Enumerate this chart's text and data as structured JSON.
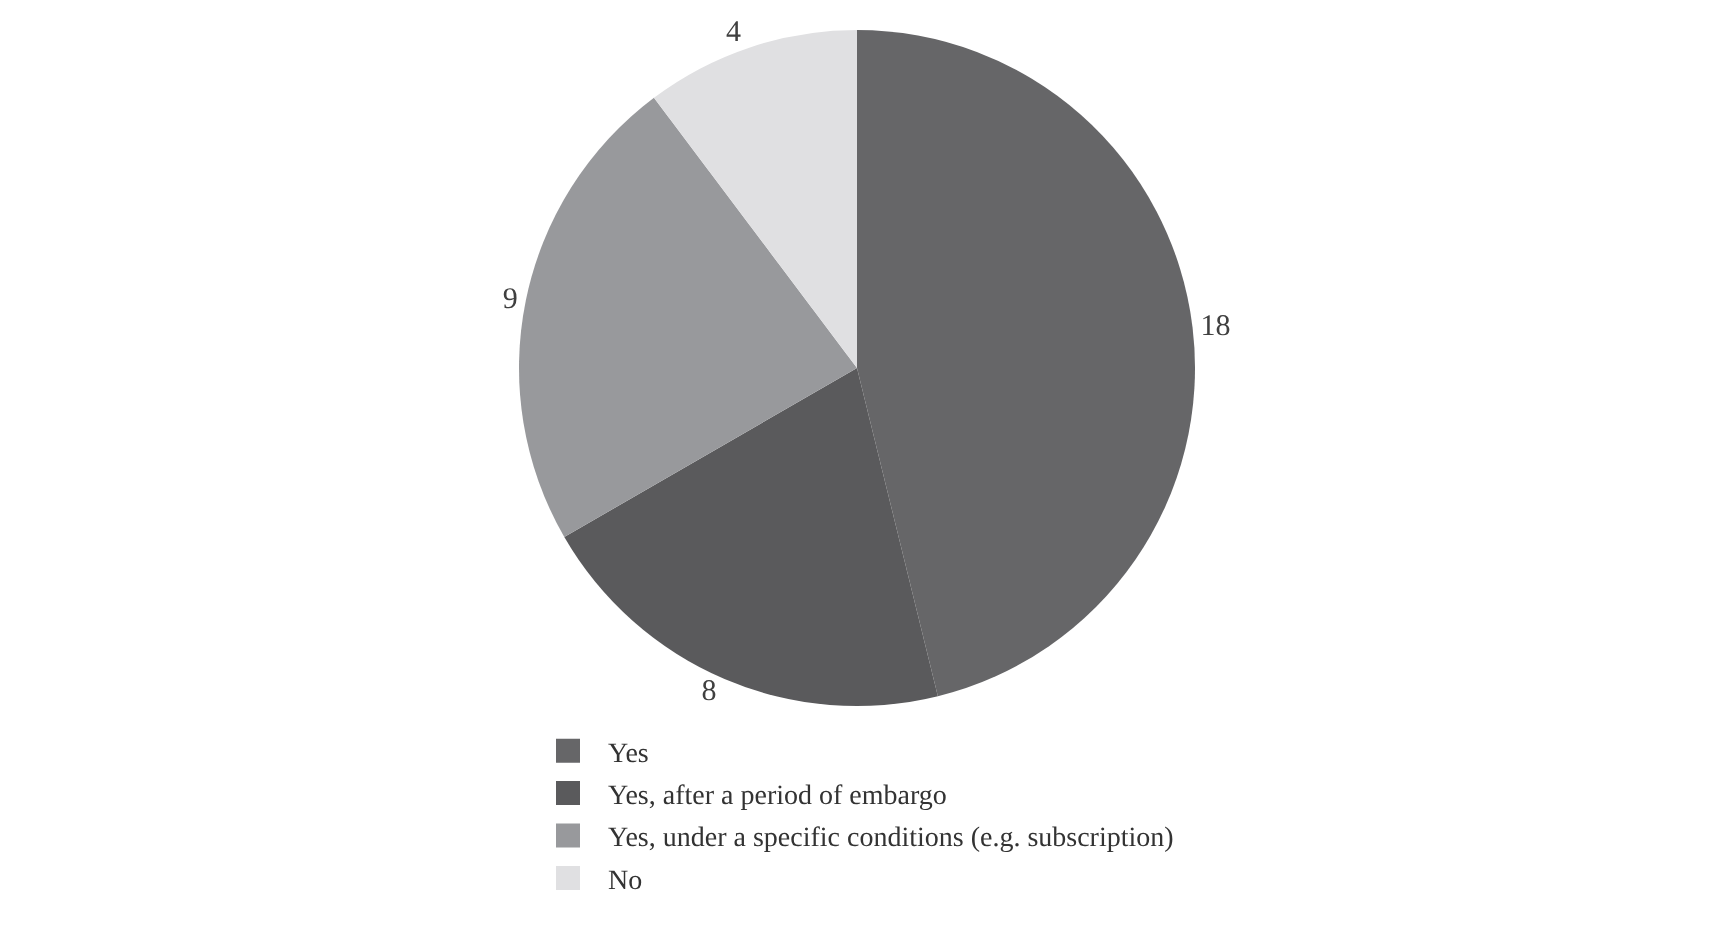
{
  "chart_data": {
    "type": "pie",
    "categories": [
      "Yes",
      "Yes, after a period of embargo",
      "Yes, under a specific conditions (e.g. subscription)",
      "No"
    ],
    "values": [
      18,
      8,
      9,
      4
    ],
    "colors": [
      "#666668",
      "#5a5a5c",
      "#98999c",
      "#e0e0e2"
    ],
    "data_labels": true,
    "legend": "bottom"
  }
}
